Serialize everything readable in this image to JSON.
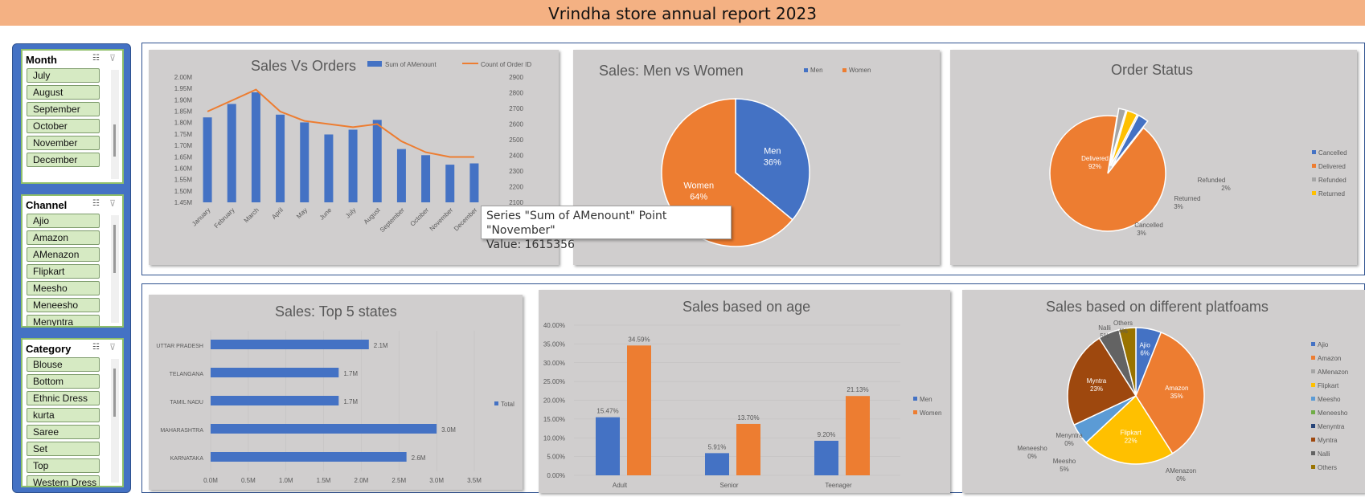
{
  "report": {
    "title": "Vrindha store annual report 2023"
  },
  "slicers": {
    "month": {
      "label": "Month",
      "items": [
        "July",
        "August",
        "September",
        "October",
        "November",
        "December"
      ]
    },
    "channel": {
      "label": "Channel",
      "items": [
        "Ajio",
        "Amazon",
        "AMenazon",
        "Flipkart",
        "Meesho",
        "Meneesho",
        "Menyntra"
      ]
    },
    "category": {
      "label": "Category",
      "items": [
        "Blouse",
        "Bottom",
        "Ethnic Dress",
        "kurta",
        "Saree",
        "Set",
        "Top",
        "Western Dress"
      ]
    }
  },
  "tooltip": {
    "line1": "Series \"Sum of AMenount\" Point \"November\"",
    "line2": "Value: 1615356"
  },
  "colors": {
    "blue": "#4472c4",
    "orange": "#ed7d31",
    "gray": "#a5a5a5",
    "yellow": "#ffc000",
    "lightblue": "#5b9bd5",
    "green": "#70ad47",
    "navy": "#264478",
    "brown": "#9e480e",
    "darkgray": "#636363",
    "olive": "#997300",
    "title_bg": "#f4b183",
    "panel_blue": "#4472c4",
    "card_bg": "#d0cece"
  },
  "chart_data": [
    {
      "id": "sales-vs-orders",
      "type": "bar",
      "title": "Sales Vs Orders",
      "categories": [
        "January",
        "February",
        "March",
        "April",
        "May",
        "June",
        "July",
        "August",
        "September",
        "October",
        "November",
        "December"
      ],
      "series": [
        {
          "name": "Sum of AMenount",
          "type": "bar",
          "axis": "left",
          "values": [
            1823000,
            1882000,
            1933000,
            1835000,
            1801000,
            1748000,
            1769000,
            1812000,
            1684000,
            1657000,
            1615356,
            1621000
          ]
        },
        {
          "name": "Count of Order ID",
          "type": "line",
          "axis": "right",
          "values": [
            2680,
            2750,
            2820,
            2680,
            2620,
            2600,
            2580,
            2600,
            2490,
            2420,
            2390,
            2390
          ]
        }
      ],
      "ylim": [
        1450000,
        2000000
      ],
      "y2lim": [
        2100,
        2900
      ],
      "y_ticks": [
        "1.45M",
        "1.50M",
        "1.55M",
        "1.60M",
        "1.65M",
        "1.70M",
        "1.75M",
        "1.80M",
        "1.85M",
        "1.90M",
        "1.95M",
        "2.00M"
      ],
      "y2_ticks": [
        "2100",
        "2200",
        "2300",
        "2400",
        "2500",
        "2600",
        "2700",
        "2800",
        "2900"
      ],
      "legend": "top"
    },
    {
      "id": "men-vs-women",
      "type": "pie",
      "title": "Sales: Men vs Women",
      "labels": [
        "Men",
        "Women"
      ],
      "values": [
        36,
        64
      ],
      "data_labels": [
        "36%",
        "64%"
      ],
      "legend": "top"
    },
    {
      "id": "order-status",
      "type": "pie",
      "title": "Order Status",
      "labels": [
        "Cancelled",
        "Delivered",
        "Refunded",
        "Returned"
      ],
      "values": [
        3,
        92,
        2,
        3
      ],
      "data_labels": [
        "3%",
        "92%",
        "2%",
        "3%"
      ],
      "legend": "right"
    },
    {
      "id": "top-states",
      "type": "bar",
      "orientation": "horizontal",
      "title": "Sales: Top 5 states",
      "categories": [
        "UTTAR PRADESH",
        "TELANGANA",
        "TAMIL NADU",
        "MAHARASHTRA",
        "KARNATAKA"
      ],
      "series": [
        {
          "name": "Total",
          "values": [
            2.1,
            1.7,
            1.7,
            3.0,
            2.6
          ]
        }
      ],
      "data_labels": [
        "2.1M",
        "1.7M",
        "1.7M",
        "3.0M",
        "2.6M"
      ],
      "x_ticks": [
        "0.0M",
        "0.5M",
        "1.0M",
        "1.5M",
        "2.0M",
        "2.5M",
        "3.0M",
        "3.5M"
      ],
      "xlim": [
        0,
        3.5
      ],
      "legend": "right"
    },
    {
      "id": "sales-by-age",
      "type": "bar",
      "title": "Sales based on age",
      "categories": [
        "Adult",
        "Senior",
        "Teenager"
      ],
      "series": [
        {
          "name": "Men",
          "values": [
            15.47,
            5.91,
            9.2
          ]
        },
        {
          "name": "Women",
          "values": [
            34.59,
            13.7,
            21.13
          ]
        }
      ],
      "data_labels": [
        [
          "15.47%",
          "5.91%",
          "9.20%"
        ],
        [
          "34.59%",
          "13.70%",
          "21.13%"
        ]
      ],
      "y_ticks": [
        "0.00%",
        "5.00%",
        "10.00%",
        "15.00%",
        "20.00%",
        "25.00%",
        "30.00%",
        "35.00%",
        "40.00%"
      ],
      "ylim": [
        0,
        40
      ],
      "legend": "right"
    },
    {
      "id": "sales-by-platform",
      "type": "pie",
      "title": "Sales based on different platfoams",
      "labels": [
        "Ajio",
        "Amazon",
        "AMenazon",
        "Flipkart",
        "Meesho",
        "Meneesho",
        "Menyntra",
        "Myntra",
        "Nalli",
        "Others"
      ],
      "values": [
        6,
        35,
        0,
        22,
        5,
        0,
        0,
        23,
        5,
        4
      ],
      "data_labels": [
        "6%",
        "35%",
        "0%",
        "22%",
        "5%",
        "0%",
        "0%",
        "23%",
        "5%",
        "4%"
      ],
      "legend": "right"
    }
  ]
}
